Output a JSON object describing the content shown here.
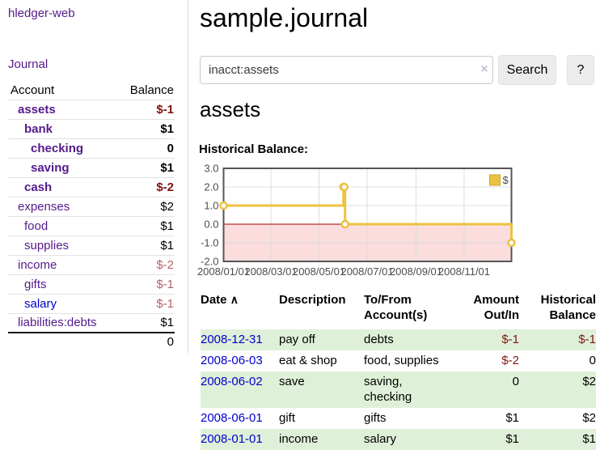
{
  "app": {
    "title": "hledger-web"
  },
  "sidebar": {
    "journal_label": "Journal",
    "accounts_table": {
      "headers": {
        "account": "Account",
        "balance": "Balance"
      },
      "rows": [
        {
          "account": "assets",
          "depth": 0,
          "bold": true,
          "balance": "$-1",
          "balance_style": "neg-strong"
        },
        {
          "account": "bank",
          "depth": 1,
          "bold": true,
          "balance": "$1",
          "balance_style": "pos"
        },
        {
          "account": "checking",
          "depth": 2,
          "bold": true,
          "balance": "0",
          "balance_style": "pos"
        },
        {
          "account": "saving",
          "depth": 2,
          "bold": true,
          "balance": "$1",
          "balance_style": "pos"
        },
        {
          "account": "cash",
          "depth": 1,
          "bold": true,
          "balance": "$-2",
          "balance_style": "neg-strong"
        },
        {
          "account": "expenses",
          "depth": 0,
          "bold": false,
          "balance": "$2",
          "balance_style": "pos"
        },
        {
          "account": "food",
          "depth": 1,
          "bold": false,
          "balance": "$1",
          "balance_style": "pos"
        },
        {
          "account": "supplies",
          "depth": 1,
          "bold": false,
          "balance": "$1",
          "balance_style": "pos"
        },
        {
          "account": "income",
          "depth": 0,
          "bold": false,
          "balance": "$-2",
          "balance_style": "neg-soft"
        },
        {
          "account": "gifts",
          "depth": 1,
          "bold": false,
          "balance": "$-1",
          "balance_style": "neg-soft"
        },
        {
          "account": "salary",
          "depth": 1,
          "bold": false,
          "balance": "$-1",
          "balance_style": "neg-soft",
          "blue_link": true
        },
        {
          "account": "liabilities:debts",
          "depth": 0,
          "bold": false,
          "balance": "$1",
          "balance_style": "pos"
        }
      ],
      "total": "0"
    }
  },
  "main": {
    "title": "sample.journal",
    "search": {
      "value": "inacct:assets",
      "clear_icon": "×",
      "button": "Search",
      "help_button": "?"
    },
    "account_heading": "assets",
    "chart_heading": "Historical Balance:"
  },
  "chart_data": {
    "type": "line",
    "title": "Historical Balance:",
    "series": [
      {
        "name": "$",
        "color": "#edc240",
        "step": true,
        "points": [
          [
            "2008-01-01",
            1
          ],
          [
            "2008-06-01",
            2
          ],
          [
            "2008-06-02",
            2
          ],
          [
            "2008-06-03",
            0
          ],
          [
            "2008-12-31",
            -1
          ]
        ]
      }
    ],
    "ylim": [
      -2,
      3
    ],
    "yticks": [
      3.0,
      2.0,
      1.0,
      0.0,
      -1.0,
      -2.0
    ],
    "xlim": [
      "2008-01-01",
      "2008-12-31"
    ],
    "xticks": [
      "2008/01/01",
      "2008/03/01",
      "2008/05/01",
      "2008/07/01",
      "2008/09/01",
      "2008/11/01"
    ],
    "grid": true,
    "legend_position": "top-right",
    "negative_region_color": "#fbdddd",
    "zero_line_color": "#a00000"
  },
  "register_table": {
    "headers": {
      "date": "Date",
      "description": "Description",
      "accounts": "To/From Account(s)",
      "amount": "Amount Out/In",
      "balance": "Historical Balance"
    },
    "sort_icon": "∧",
    "rows": [
      {
        "date": "2008-12-31",
        "description": "pay off",
        "accounts": "debts",
        "amount": "$-1",
        "amount_negative": true,
        "balance": "$-1",
        "balance_negative": true
      },
      {
        "date": "2008-06-03",
        "description": "eat & shop",
        "accounts": "food, supplies",
        "amount": "$-2",
        "amount_negative": true,
        "balance": "0",
        "balance_negative": false
      },
      {
        "date": "2008-06-02",
        "description": "save",
        "accounts": "saving, checking",
        "amount": "0",
        "amount_negative": false,
        "balance": "$2",
        "balance_negative": false
      },
      {
        "date": "2008-06-01",
        "description": "gift",
        "accounts": "gifts",
        "amount": "$1",
        "amount_negative": false,
        "balance": "$2",
        "balance_negative": false
      },
      {
        "date": "2008-01-01",
        "description": "income",
        "accounts": "salary",
        "amount": "$1",
        "amount_negative": false,
        "balance": "$1",
        "balance_negative": false
      }
    ]
  },
  "colors": {
    "link_purple": "#551a8b",
    "link_blue": "#0000cc",
    "negative": "#801515",
    "negative_strong": "#7f1212",
    "negative_soft": "#b2636b",
    "row_stripe_green": "#dff0d8",
    "chart_line": "#edc240"
  }
}
